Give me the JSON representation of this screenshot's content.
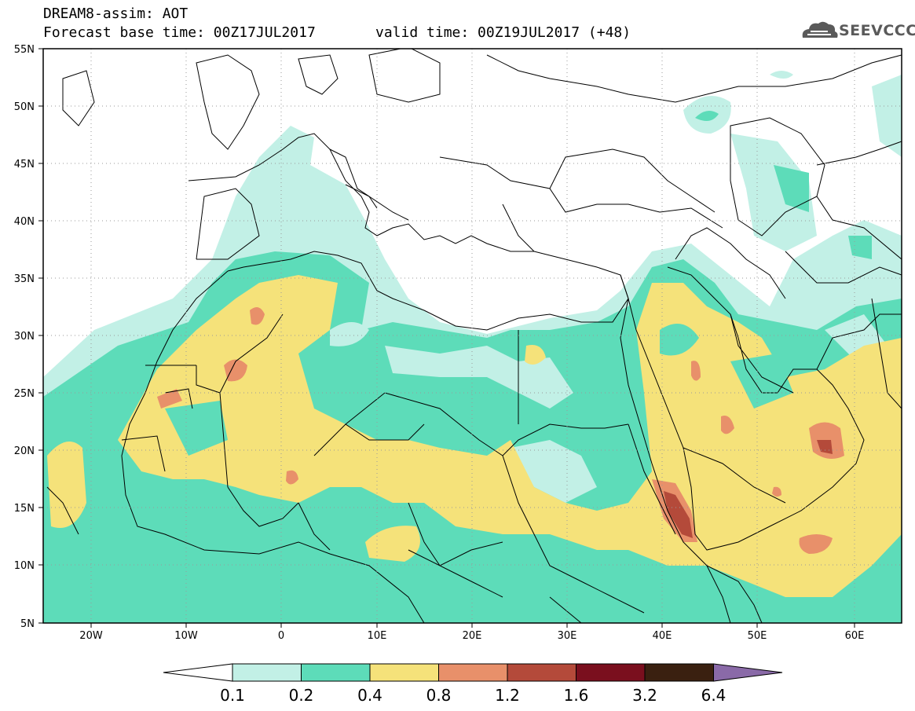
{
  "header": {
    "title": "DREAM8-assim: AOT",
    "base_time": "Forecast base time: 00Z17JUL2017",
    "valid_time": "valid time: 00Z19JUL2017 (+48)"
  },
  "logo": {
    "text": "SEEVCCC",
    "icon": "cloud-logo-icon"
  },
  "axes": {
    "lat_labels": [
      "55N",
      "50N",
      "45N",
      "40N",
      "35N",
      "30N",
      "25N",
      "20N",
      "15N",
      "10N",
      "5N"
    ],
    "lon_labels": [
      "20W",
      "10W",
      "0",
      "10E",
      "20E",
      "30E",
      "40E",
      "50E",
      "60E"
    ]
  },
  "colorbar": {
    "levels": [
      "0.1",
      "0.2",
      "0.4",
      "0.8",
      "1.2",
      "1.6",
      "3.2",
      "6.4"
    ],
    "colors": [
      "#ffffff",
      "#c2f0e6",
      "#5ddcb9",
      "#f5e27a",
      "#e8906a",
      "#b44a3a",
      "#7a0f1e",
      "#3a2010",
      "#8a6aa8"
    ]
  }
}
